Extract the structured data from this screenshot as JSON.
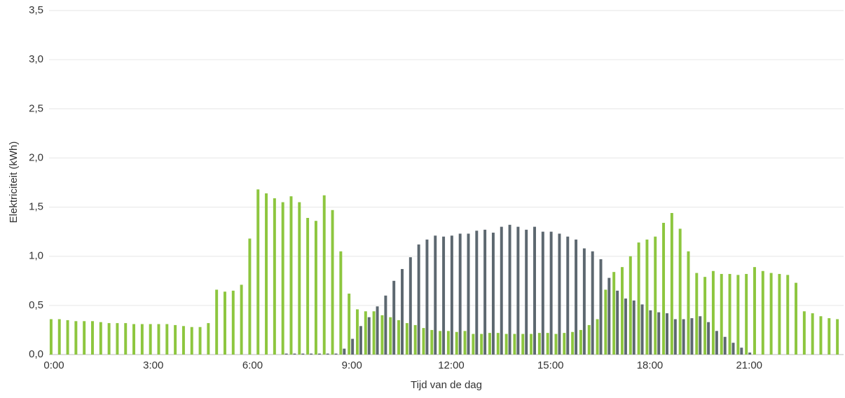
{
  "chart_data": {
    "type": "bar",
    "y_label": "Elektriciteit (kWh)",
    "x_label": "Tijd van de dag",
    "categories": [
      "0:00",
      null,
      null,
      null,
      null,
      null,
      null,
      null,
      null,
      null,
      null,
      null,
      "3:00",
      null,
      null,
      null,
      null,
      null,
      null,
      null,
      null,
      null,
      null,
      null,
      "6:00",
      null,
      null,
      null,
      null,
      null,
      null,
      null,
      null,
      null,
      null,
      null,
      "9:00",
      null,
      null,
      null,
      null,
      null,
      null,
      null,
      null,
      null,
      null,
      null,
      "12:00",
      null,
      null,
      null,
      null,
      null,
      null,
      null,
      null,
      null,
      null,
      null,
      "15:00",
      null,
      null,
      null,
      null,
      null,
      null,
      null,
      null,
      null,
      null,
      null,
      "18:00",
      null,
      null,
      null,
      null,
      null,
      null,
      null,
      null,
      null,
      null,
      null,
      "21:00",
      null,
      null,
      null,
      null,
      null,
      null,
      null,
      null,
      null,
      null,
      null
    ],
    "series": [
      {
        "color": "#8dc63f",
        "values": [
          0.36,
          0.36,
          0.35,
          0.34,
          0.34,
          0.34,
          0.33,
          0.32,
          0.32,
          0.32,
          0.31,
          0.31,
          0.31,
          0.31,
          0.31,
          0.3,
          0.29,
          0.28,
          0.28,
          0.32,
          0.66,
          0.64,
          0.65,
          0.71,
          1.18,
          1.68,
          1.64,
          1.59,
          1.55,
          1.61,
          1.55,
          1.39,
          1.36,
          1.62,
          1.47,
          1.05,
          0.62,
          0.46,
          0.44,
          0.44,
          0.4,
          0.38,
          0.35,
          0.32,
          0.3,
          0.27,
          0.25,
          0.24,
          0.24,
          0.23,
          0.24,
          0.21,
          0.21,
          0.22,
          0.22,
          0.21,
          0.21,
          0.21,
          0.21,
          0.22,
          0.22,
          0.21,
          0.22,
          0.23,
          0.25,
          0.3,
          0.36,
          0.66,
          0.84,
          0.89,
          1.0,
          1.14,
          1.17,
          1.2,
          1.34,
          1.44,
          1.28,
          1.05,
          0.83,
          0.79,
          0.85,
          0.82,
          0.82,
          0.81,
          0.82,
          0.89,
          0.85,
          0.83,
          0.82,
          0.81,
          0.73,
          0.44,
          0.42,
          0.39,
          0.37,
          0.36
        ]
      },
      {
        "color": "#5d6870",
        "values": [
          0,
          0,
          0,
          0,
          0,
          0,
          0,
          0,
          0,
          0,
          0,
          0,
          0,
          0,
          0,
          0,
          0,
          0,
          0,
          0,
          0,
          0,
          0,
          0,
          0,
          0,
          0,
          0,
          0.01,
          0.01,
          0.01,
          0.01,
          0.01,
          0.01,
          0.01,
          0.06,
          0.16,
          0.29,
          0.38,
          0.49,
          0.6,
          0.75,
          0.87,
          0.99,
          1.12,
          1.17,
          1.21,
          1.2,
          1.21,
          1.23,
          1.23,
          1.26,
          1.27,
          1.24,
          1.3,
          1.32,
          1.3,
          1.27,
          1.3,
          1.25,
          1.25,
          1.23,
          1.2,
          1.17,
          1.08,
          1.05,
          0.97,
          0.78,
          0.65,
          0.57,
          0.55,
          0.51,
          0.45,
          0.43,
          0.42,
          0.36,
          0.36,
          0.37,
          0.39,
          0.33,
          0.24,
          0.18,
          0.12,
          0.07,
          0.02,
          0,
          0,
          0,
          0,
          0,
          0,
          0,
          0,
          0,
          0,
          0
        ]
      }
    ],
    "ylim": [
      0,
      3.5
    ],
    "yticks": [
      {
        "value": 0,
        "label": "0,0"
      },
      {
        "value": 0.5,
        "label": "0,5"
      },
      {
        "value": 1,
        "label": "1,0"
      },
      {
        "value": 1.5,
        "label": "1,5"
      },
      {
        "value": 2,
        "label": "2,0"
      },
      {
        "value": 2.5,
        "label": "2,5"
      },
      {
        "value": 3,
        "label": "3,0"
      },
      {
        "value": 3.5,
        "label": "3,5"
      }
    ],
    "grid": true
  }
}
